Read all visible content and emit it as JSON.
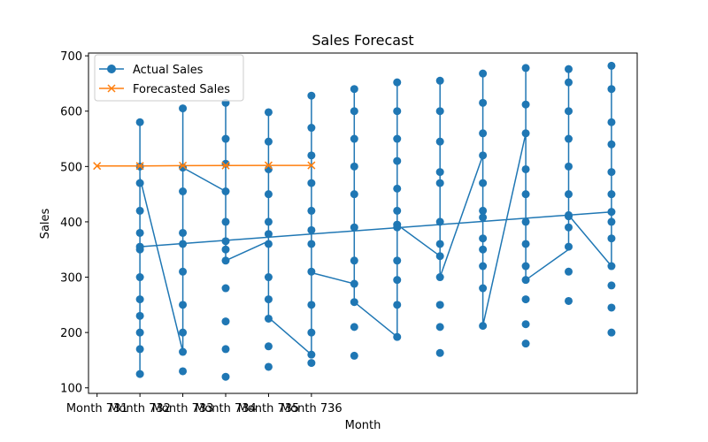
{
  "chart_data": {
    "type": "line",
    "title": "Sales Forecast",
    "xlabel": "Month",
    "ylabel": "Sales",
    "ylim": [
      90,
      705
    ],
    "yticks": [
      100,
      200,
      300,
      400,
      500,
      600,
      700
    ],
    "xlim": [
      -0.2,
      12.6
    ],
    "xticks": [
      0,
      1,
      2,
      3,
      4,
      5
    ],
    "xtick_labels": [
      "Month 731",
      "Month 732",
      "Month 733",
      "Month 734",
      "Month 735",
      "Month 736"
    ],
    "legend_position": "upper-left",
    "series": [
      {
        "name": "Actual Sales",
        "color": "#1f77b4",
        "marker": "circle",
        "points": [
          [
            1,
            580
          ],
          [
            1,
            500
          ],
          [
            1,
            470
          ],
          [
            1,
            420
          ],
          [
            1,
            380
          ],
          [
            1,
            350
          ],
          [
            1,
            300
          ],
          [
            1,
            260
          ],
          [
            1,
            230
          ],
          [
            1,
            200
          ],
          [
            1,
            170
          ],
          [
            1,
            125
          ],
          [
            1,
            355
          ],
          [
            2,
            605
          ],
          [
            2,
            498
          ],
          [
            2,
            455
          ],
          [
            2,
            380
          ],
          [
            2,
            360
          ],
          [
            2,
            310
          ],
          [
            2,
            250
          ],
          [
            2,
            200
          ],
          [
            2,
            165
          ],
          [
            2,
            130
          ],
          [
            3,
            615
          ],
          [
            3,
            550
          ],
          [
            3,
            505
          ],
          [
            3,
            455
          ],
          [
            3,
            400
          ],
          [
            3,
            350
          ],
          [
            3,
            330
          ],
          [
            3,
            280
          ],
          [
            3,
            220
          ],
          [
            3,
            170
          ],
          [
            3,
            120
          ],
          [
            3,
            365
          ],
          [
            4,
            598
          ],
          [
            4,
            545
          ],
          [
            4,
            495
          ],
          [
            4,
            450
          ],
          [
            4,
            400
          ],
          [
            4,
            360
          ],
          [
            4,
            300
          ],
          [
            4,
            260
          ],
          [
            4,
            225
          ],
          [
            4,
            175
          ],
          [
            4,
            138
          ],
          [
            4,
            378
          ],
          [
            5,
            628
          ],
          [
            5,
            570
          ],
          [
            5,
            520
          ],
          [
            5,
            470
          ],
          [
            5,
            420
          ],
          [
            5,
            360
          ],
          [
            5,
            310
          ],
          [
            5,
            250
          ],
          [
            5,
            200
          ],
          [
            5,
            160
          ],
          [
            5,
            145
          ],
          [
            5,
            385
          ],
          [
            6,
            640
          ],
          [
            6,
            600
          ],
          [
            6,
            550
          ],
          [
            6,
            500
          ],
          [
            6,
            450
          ],
          [
            6,
            390
          ],
          [
            6,
            330
          ],
          [
            6,
            288
          ],
          [
            6,
            255
          ],
          [
            6,
            210
          ],
          [
            6,
            158
          ],
          [
            7,
            652
          ],
          [
            7,
            600
          ],
          [
            7,
            550
          ],
          [
            7,
            510
          ],
          [
            7,
            460
          ],
          [
            7,
            420
          ],
          [
            7,
            390
          ],
          [
            7,
            330
          ],
          [
            7,
            295
          ],
          [
            7,
            250
          ],
          [
            7,
            192
          ],
          [
            7,
            395
          ],
          [
            8,
            655
          ],
          [
            8,
            600
          ],
          [
            8,
            545
          ],
          [
            8,
            490
          ],
          [
            8,
            470
          ],
          [
            8,
            400
          ],
          [
            8,
            360
          ],
          [
            8,
            338
          ],
          [
            8,
            300
          ],
          [
            8,
            250
          ],
          [
            8,
            210
          ],
          [
            8,
            163
          ],
          [
            9,
            668
          ],
          [
            9,
            615
          ],
          [
            9,
            560
          ],
          [
            9,
            520
          ],
          [
            9,
            470
          ],
          [
            9,
            420
          ],
          [
            9,
            370
          ],
          [
            9,
            350
          ],
          [
            9,
            320
          ],
          [
            9,
            280
          ],
          [
            9,
            212
          ],
          [
            9,
            408
          ],
          [
            10,
            678
          ],
          [
            10,
            612
          ],
          [
            10,
            560
          ],
          [
            10,
            495
          ],
          [
            10,
            450
          ],
          [
            10,
            400
          ],
          [
            10,
            360
          ],
          [
            10,
            320
          ],
          [
            10,
            295
          ],
          [
            10,
            260
          ],
          [
            10,
            215
          ],
          [
            10,
            180
          ],
          [
            11,
            676
          ],
          [
            11,
            652
          ],
          [
            11,
            600
          ],
          [
            11,
            550
          ],
          [
            11,
            500
          ],
          [
            11,
            450
          ],
          [
            11,
            410
          ],
          [
            11,
            390
          ],
          [
            11,
            355
          ],
          [
            11,
            310
          ],
          [
            11,
            257
          ],
          [
            11,
            412
          ],
          [
            12,
            682
          ],
          [
            12,
            640
          ],
          [
            12,
            580
          ],
          [
            12,
            540
          ],
          [
            12,
            490
          ],
          [
            12,
            450
          ],
          [
            12,
            400
          ],
          [
            12,
            370
          ],
          [
            12,
            320
          ],
          [
            12,
            285
          ],
          [
            12,
            245
          ],
          [
            12,
            200
          ],
          [
            12,
            418
          ]
        ],
        "line": [
          [
            1,
            580
          ],
          [
            1,
            120
          ],
          [
            1,
            480
          ],
          [
            2,
            165
          ],
          [
            2,
            605
          ],
          [
            2,
            498
          ],
          [
            3,
            455
          ],
          [
            3,
            615
          ],
          [
            3,
            330
          ],
          [
            4,
            365
          ],
          [
            4,
            598
          ],
          [
            4,
            227
          ],
          [
            5,
            160
          ],
          [
            5,
            628
          ],
          [
            5,
            308
          ],
          [
            6,
            288
          ],
          [
            6,
            640
          ],
          [
            6,
            255
          ],
          [
            7,
            192
          ],
          [
            7,
            652
          ],
          [
            7,
            395
          ],
          [
            8,
            338
          ],
          [
            8,
            655
          ],
          [
            8,
            300
          ],
          [
            9,
            520
          ],
          [
            9,
            668
          ],
          [
            9,
            212
          ],
          [
            10,
            560
          ],
          [
            10,
            678
          ],
          [
            10,
            295
          ],
          [
            11,
            350
          ],
          [
            11,
            676
          ],
          [
            11,
            412
          ],
          [
            12,
            320
          ],
          [
            12,
            682
          ],
          [
            12,
            490
          ],
          [
            12,
            418
          ],
          [
            1,
            355
          ]
        ]
      },
      {
        "name": "Forecasted Sales",
        "color": "#ff7f0e",
        "marker": "x",
        "points": [
          [
            0,
            501
          ],
          [
            1,
            501
          ],
          [
            2,
            501.5
          ],
          [
            3,
            501.8
          ],
          [
            4,
            502
          ],
          [
            5,
            502
          ]
        ]
      }
    ]
  }
}
